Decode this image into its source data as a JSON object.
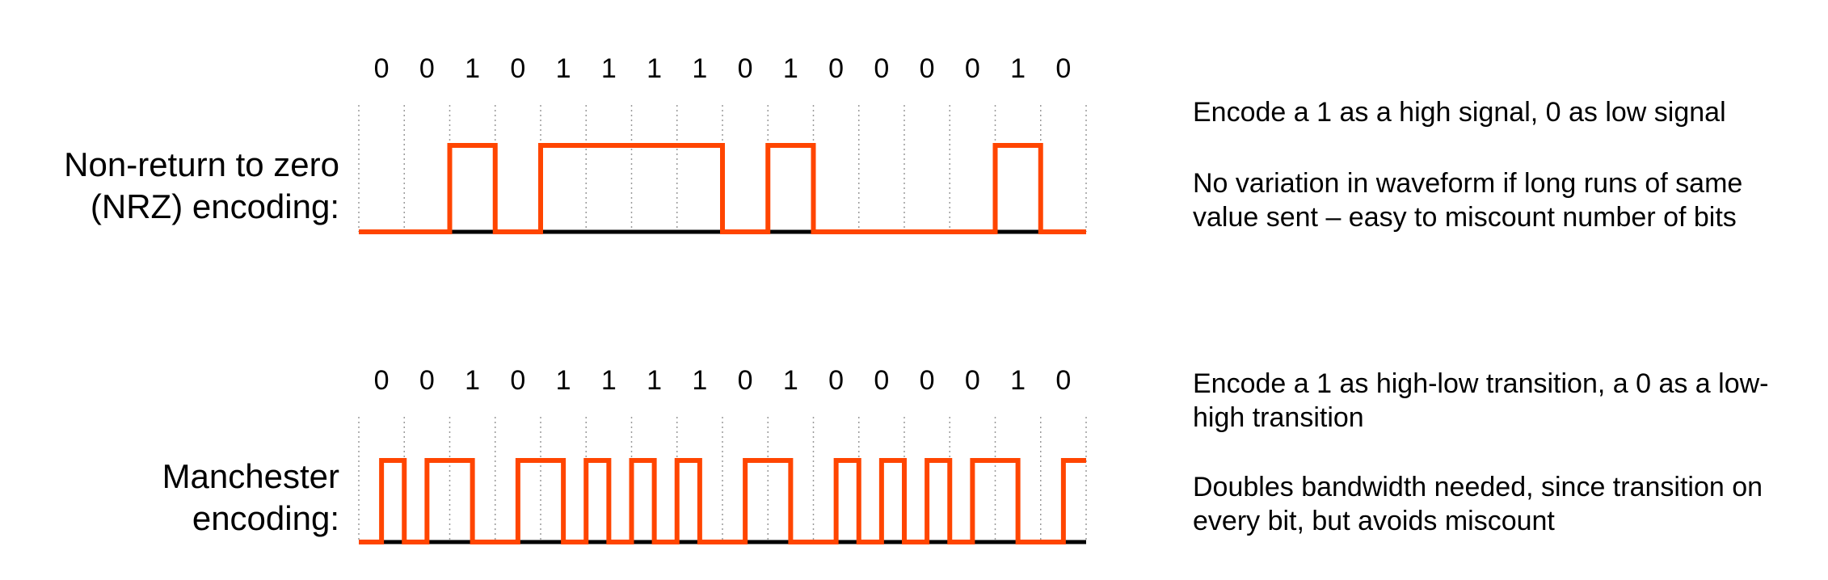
{
  "colors": {
    "signal": "#ff4500",
    "baseline": "#000000",
    "grid": "#9a9a9a"
  },
  "bits": [
    0,
    0,
    1,
    0,
    1,
    1,
    1,
    1,
    0,
    1,
    0,
    0,
    0,
    0,
    1,
    0
  ],
  "nrz": {
    "label_line1": "Non-return to zero",
    "label_line2": "(NRZ) encoding:",
    "note1": "Encode a 1 as a high signal, 0 as low signal",
    "note2": "No variation in waveform if long runs of same value sent – easy to miscount number of bits"
  },
  "manchester": {
    "label_line1": "Manchester",
    "label_line2": "encoding:",
    "note1": "Encode a 1 as high-low transition, a 0 as a low-high transition",
    "note2": "Doubles bandwidth needed, since transition on every bit, but avoids miscount"
  }
}
